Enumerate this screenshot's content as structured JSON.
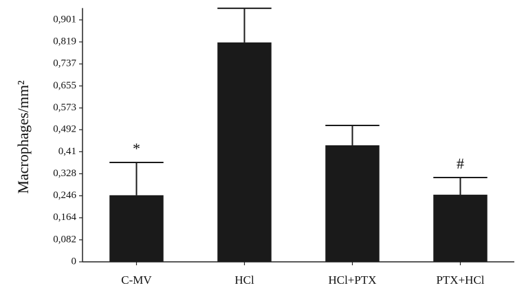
{
  "chart_data": {
    "type": "bar",
    "y_label": "Macrophages/mm²",
    "categories": [
      "C-MV",
      "HCl",
      "HCl+PTX",
      "PTX+HCl"
    ],
    "values": [
      0.248,
      0.817,
      0.434,
      0.25
    ],
    "errors": [
      0.122,
      0.127,
      0.074,
      0.064
    ],
    "annotations": [
      "*",
      null,
      null,
      "#"
    ],
    "color": "#1a1a1a",
    "ylim": [
      0,
      0.945
    ],
    "yticks": [
      0,
      {
        "value": 0.082,
        "label": "0,082"
      },
      {
        "value": 0.164,
        "label": "0,164"
      },
      {
        "value": 0.246,
        "label": "0,246"
      },
      {
        "value": 0.328,
        "label": "0,328"
      },
      {
        "value": 0.41,
        "label": "0,41"
      },
      {
        "value": 0.492,
        "label": "0,492"
      },
      {
        "value": 0.573,
        "label": "0,573"
      },
      {
        "value": 0.655,
        "label": "0,655"
      },
      {
        "value": 0.737,
        "label": "0,737"
      },
      {
        "value": 0.819,
        "label": "0,819"
      },
      {
        "value": 0.901,
        "label": "0,901"
      }
    ],
    "grid": false
  }
}
